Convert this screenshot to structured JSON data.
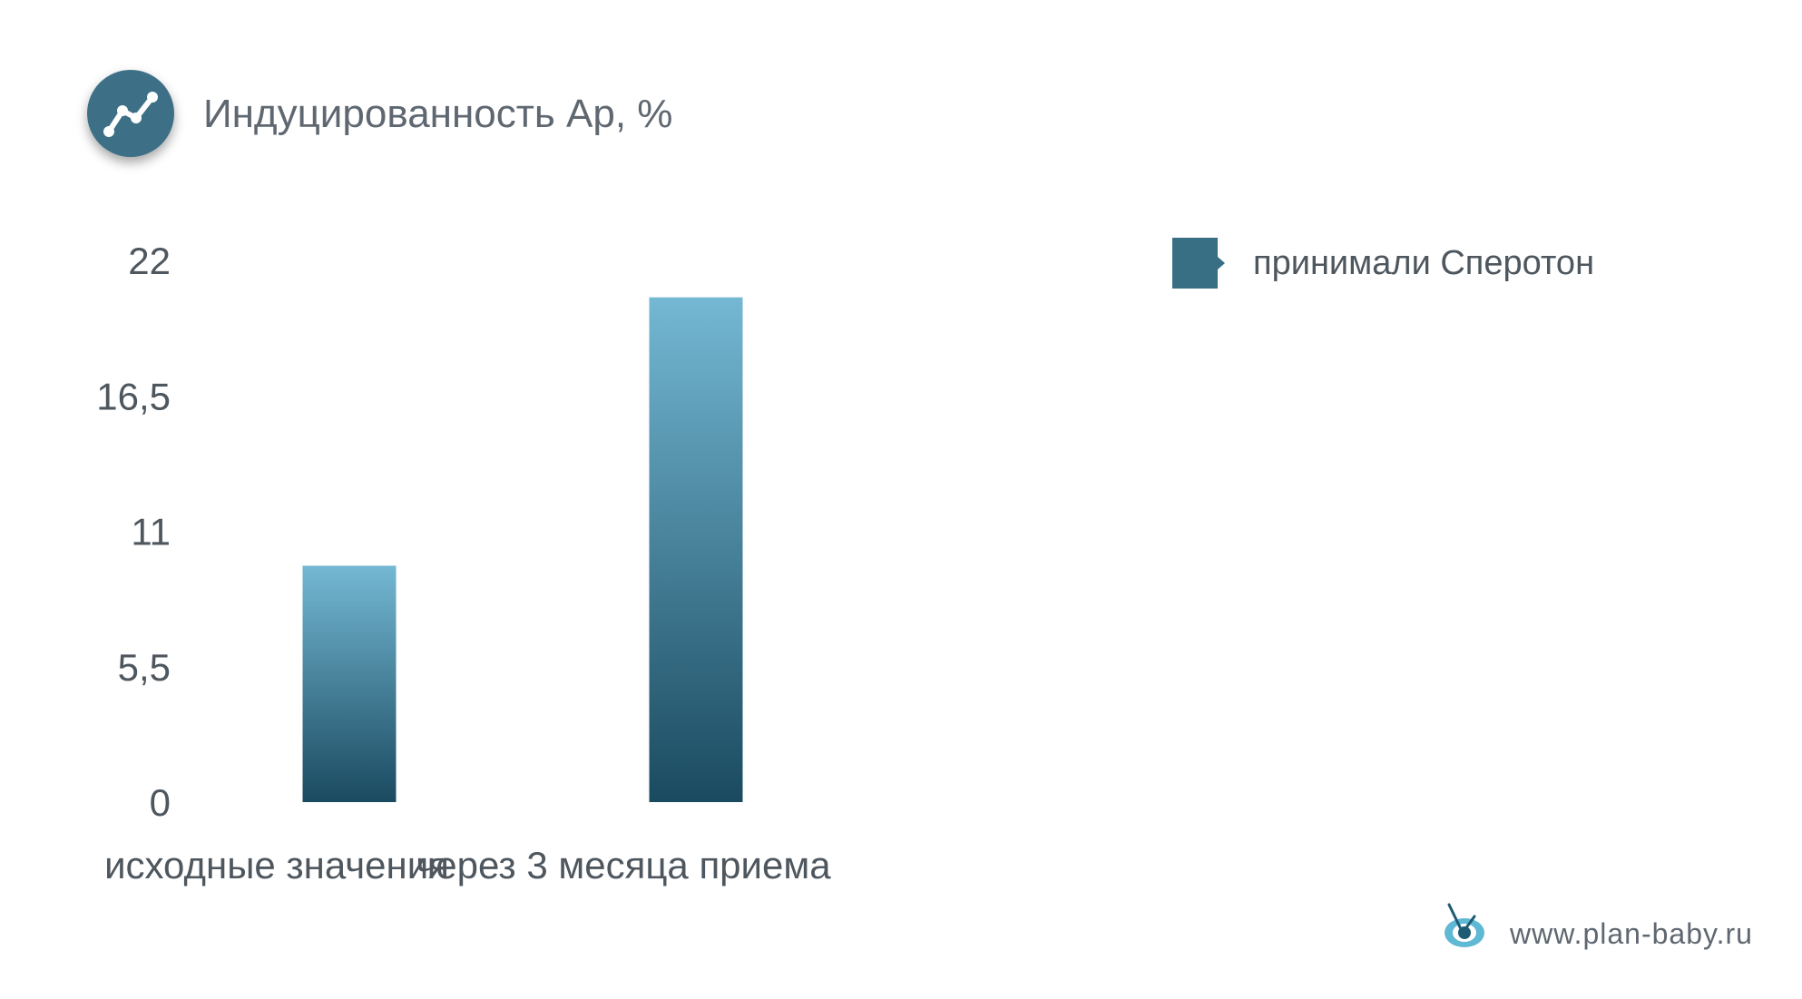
{
  "header": {
    "title": "Индуцированность Ар, %",
    "icon": "trend-line-icon",
    "icon_color": "#3d6f86"
  },
  "footer": {
    "site": "www.plan-baby.ru",
    "logo_icon": "eye-logo-icon"
  },
  "colors": {
    "bar_top": "#74b8d3",
    "bar_bottom": "#1a4a60",
    "legend_swatch": "#386f85",
    "grid": "#3e4a52"
  },
  "chart_data": {
    "type": "bar",
    "categories": [
      "исходные значения",
      "через 3 месяца приема"
    ],
    "series": [
      {
        "name": "принимали Сперотон",
        "values": [
          9.6,
          20.5
        ]
      }
    ],
    "yticks": [
      "0",
      "5,5",
      "11",
      "16,5",
      "22"
    ],
    "ylim": [
      0,
      22
    ],
    "grid": true,
    "legend_position": "right"
  }
}
